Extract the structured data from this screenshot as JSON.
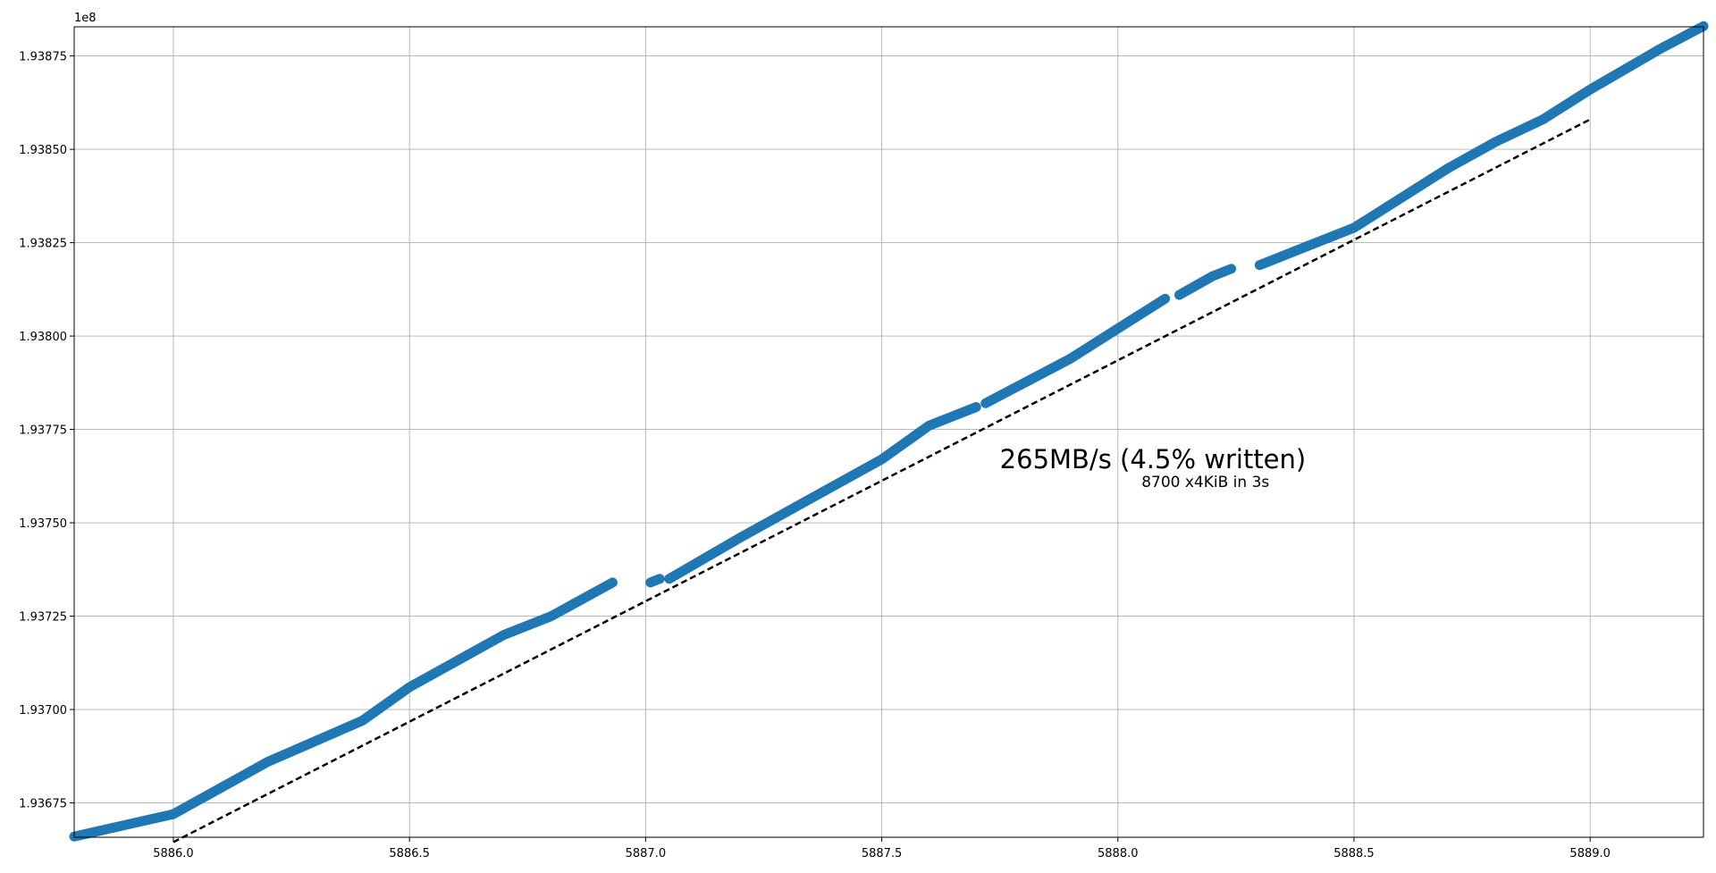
{
  "chart_data": {
    "type": "scatter",
    "title": "",
    "xlabel": "",
    "ylabel": "",
    "xlim": [
      5885.79,
      5889.24
    ],
    "ylim": [
      193665800,
      193882800
    ],
    "y_offset_label": "1e8",
    "grid": true,
    "x_ticks": [
      5886.0,
      5886.5,
      5887.0,
      5887.5,
      5888.0,
      5888.5,
      5889.0
    ],
    "x_tick_labels": [
      "5886.0",
      "5886.5",
      "5887.0",
      "5887.5",
      "5888.0",
      "5888.5",
      "5889.0"
    ],
    "y_ticks": [
      193675000,
      193700000,
      193725000,
      193750000,
      193775000,
      193800000,
      193825000,
      193850000,
      193875000
    ],
    "y_tick_labels": [
      "1.93675",
      "1.93700",
      "1.93725",
      "1.93750",
      "1.93775",
      "1.93800",
      "1.93825",
      "1.93850",
      "1.93875"
    ],
    "series": [
      {
        "color": "#1f77b4",
        "segments": [
          [
            [
              5885.79,
              193666000
            ],
            [
              5886.0,
              193672000
            ],
            [
              5886.2,
              193686000
            ],
            [
              5886.4,
              193697000
            ],
            [
              5886.5,
              193706000
            ],
            [
              5886.7,
              193720000
            ],
            [
              5886.8,
              193725000
            ],
            [
              5886.93,
              193734000
            ]
          ],
          [
            [
              5887.01,
              193734000
            ],
            [
              5887.03,
              193735000
            ]
          ],
          [
            [
              5887.05,
              193735000
            ],
            [
              5887.2,
              193746000
            ],
            [
              5887.3,
              193753000
            ],
            [
              5887.5,
              193767000
            ],
            [
              5887.6,
              193776000
            ],
            [
              5887.7,
              193781000
            ]
          ],
          [
            [
              5887.72,
              193782000
            ],
            [
              5887.9,
              193794000
            ],
            [
              5888.0,
              193802000
            ],
            [
              5888.05,
              193806000
            ],
            [
              5888.1,
              193810000
            ]
          ],
          [
            [
              5888.13,
              193811000
            ],
            [
              5888.2,
              193816000
            ],
            [
              5888.24,
              193818000
            ]
          ],
          [
            [
              5888.3,
              193819000
            ],
            [
              5888.4,
              193824000
            ],
            [
              5888.5,
              193829000
            ],
            [
              5888.7,
              193845000
            ],
            [
              5888.8,
              193852000
            ],
            [
              5888.9,
              193858000
            ],
            [
              5889.0,
              193866000
            ],
            [
              5889.15,
              193877000
            ],
            [
              5889.24,
              193883000
            ]
          ]
        ]
      }
    ],
    "reference_line": {
      "style": "dashed",
      "color": "#000000",
      "points": [
        [
          5886.0,
          193664500
        ],
        [
          5889.0,
          193858000
        ]
      ]
    },
    "annotations": [
      {
        "id": "rate",
        "text": "265MB/s (4.5% written)",
        "x": 5887.75,
        "y": 193767000
      },
      {
        "id": "detail",
        "text": "8700 x4KiB in 3s",
        "x": 5888.05,
        "y": 193761000
      }
    ]
  }
}
